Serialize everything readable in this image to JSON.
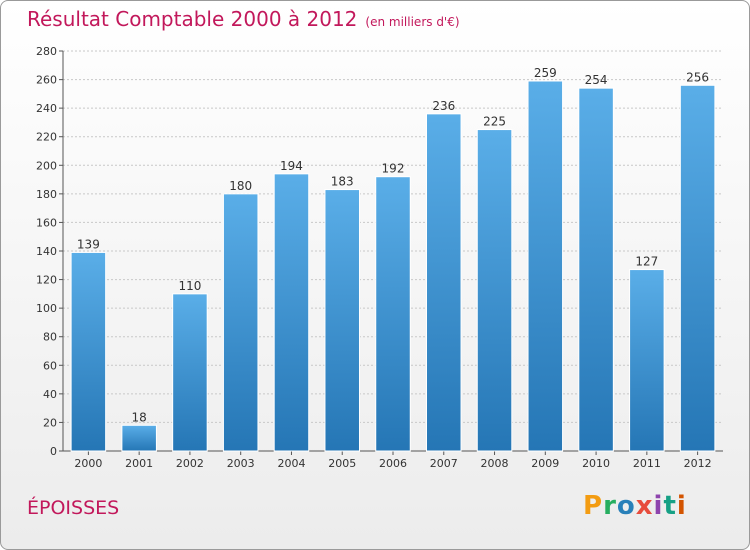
{
  "header": {
    "title": "Résultat Comptable 2000 à 2012",
    "subtitle": "(en milliers d'€)"
  },
  "footer": {
    "town": "ÉPOISSES",
    "logo_text": "Proxiti"
  },
  "colors": {
    "accent": "#c2185b",
    "bar_top": "#5aaee8",
    "bar_bottom": "#2576b5"
  },
  "chart_data": {
    "type": "bar",
    "title": "Résultat Comptable 2000 à 2012",
    "subtitle": "(en milliers d'€)",
    "xlabel": "",
    "ylabel": "",
    "categories": [
      "2000",
      "2001",
      "2002",
      "2003",
      "2004",
      "2005",
      "2006",
      "2007",
      "2008",
      "2009",
      "2010",
      "2011",
      "2012"
    ],
    "values": [
      139,
      18,
      110,
      180,
      194,
      183,
      192,
      236,
      225,
      259,
      254,
      127,
      256
    ],
    "ylim": [
      0,
      280
    ],
    "yticks": [
      0,
      20,
      40,
      60,
      80,
      100,
      120,
      140,
      160,
      180,
      200,
      220,
      240,
      260,
      280
    ],
    "grid": true,
    "legend": "none"
  }
}
